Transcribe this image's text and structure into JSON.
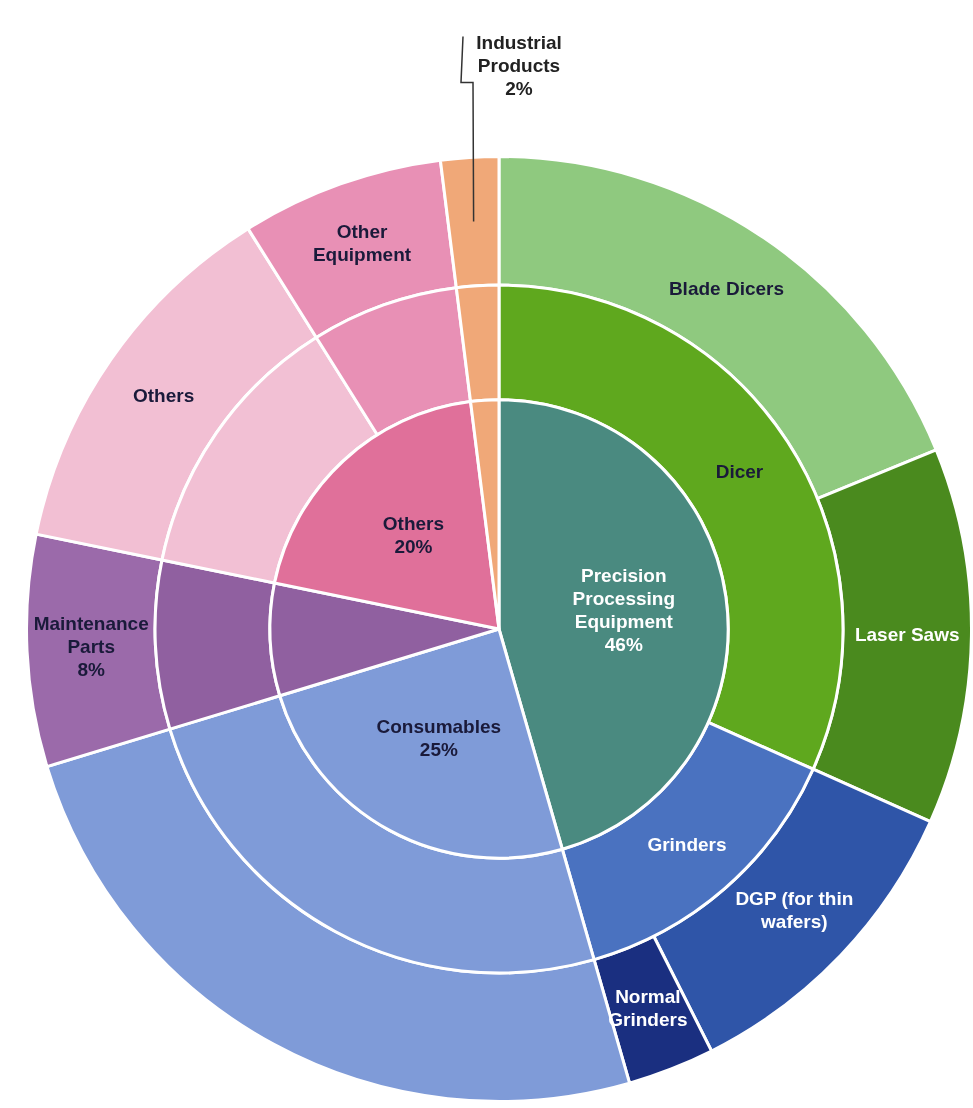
{
  "chart_data": [
    {
      "type": "donut",
      "categories": [
        "Blade Dicers",
        "Laser Saws",
        "DGP (for thin wafers)",
        "Normal Grinders",
        null,
        "Maintenance Parts",
        "Others",
        "Other Equipment",
        "Industrial Products"
      ],
      "values": [
        19,
        13,
        11,
        3,
        25,
        8,
        13,
        7,
        2
      ],
      "value_labels": [
        null,
        null,
        null,
        null,
        null,
        "8%",
        null,
        null,
        "2%"
      ],
      "colors": [
        "#8fc97f",
        "#4a8a1e",
        "#2f55a8",
        "#1a2f80",
        "#7f9bd8",
        "#9b6aaa",
        "#f2bfd3",
        "#e890b5",
        "#f0a878"
      ]
    },
    {
      "type": "donut",
      "categories": [
        "Dicer",
        "Grinders",
        null,
        null,
        null,
        null,
        null
      ],
      "values": [
        32,
        14,
        25,
        8,
        13,
        7,
        2
      ],
      "colors": [
        "#5fa81e",
        "#4a72c0",
        "#7f9bd8",
        "#9060a0",
        "#f2c0d4",
        "#e890b5",
        "#f0a878"
      ]
    },
    {
      "type": "pie",
      "categories": [
        "Precision Processing Equipment",
        "Consumables",
        null,
        "Others",
        null
      ],
      "values": [
        46,
        25,
        8,
        20,
        2
      ],
      "value_labels": [
        "46%",
        "25%",
        null,
        "20%",
        null
      ],
      "colors": [
        "#4a8a80",
        "#7f9bd8",
        "#9060a0",
        "#e0709a",
        "#f0a878"
      ]
    }
  ]
}
